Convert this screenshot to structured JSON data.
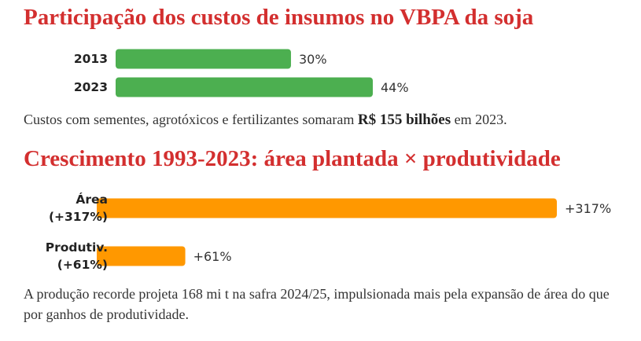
{
  "chart_data": [
    {
      "type": "bar",
      "orientation": "horizontal",
      "title": "Participação dos custos de insumos no VBPA da soja",
      "categories": [
        "2013",
        "2023"
      ],
      "values": [
        30,
        44
      ],
      "value_labels": [
        "30%",
        "44%"
      ],
      "unit": "%",
      "color": "#4caf50",
      "note": {
        "before": "Custos com sementes, agrotóxicos e fertilizantes somaram ",
        "bold": "R$ 155 bilhões",
        "after": " em 2023."
      }
    },
    {
      "type": "bar",
      "orientation": "horizontal",
      "title": "Crescimento 1993-2023: área plantada × produtividade",
      "categories": [
        [
          "Área",
          "(+317%)"
        ],
        [
          "Produtiv.",
          "(+61%)"
        ]
      ],
      "values": [
        317,
        61
      ],
      "value_labels": [
        "+317%",
        "+61%"
      ],
      "unit": "%",
      "color": "#ff9800",
      "note": "A produção recorde projeta 168 mi t na safra 2024/25, impulsionada mais pela expansão de área do que por ganhos de produtividade."
    }
  ]
}
